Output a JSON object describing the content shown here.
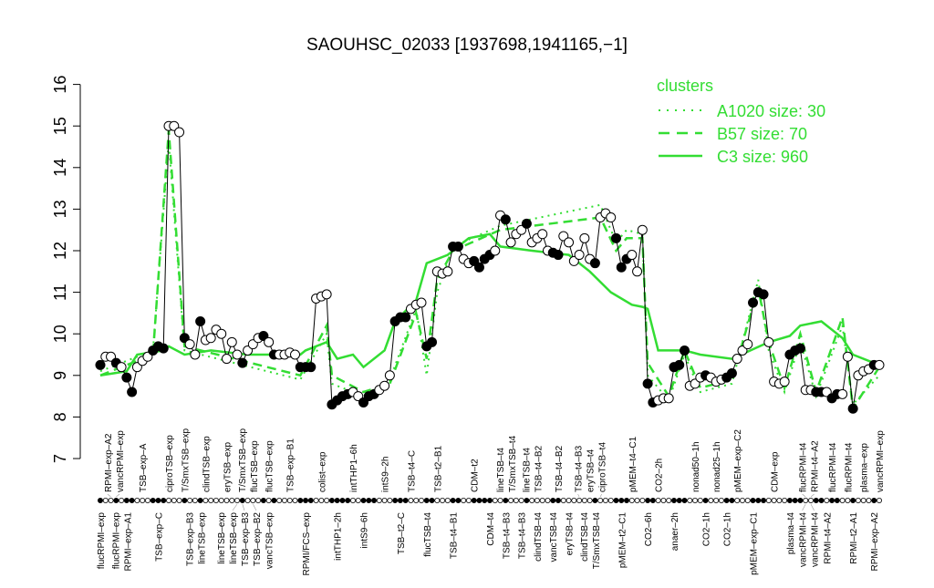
{
  "chart_data": {
    "type": "line",
    "title": "SAOUHSC_02033 [1937698,1941165,−1]",
    "xlabel": "",
    "ylabel": "",
    "ylim": [
      7,
      16
    ],
    "yticks": [
      7,
      8,
      9,
      10,
      11,
      12,
      13,
      14,
      15,
      16
    ],
    "grid": false,
    "legend": {
      "title": "clusters",
      "placement": "top-right",
      "entries": [
        {
          "label": "A1020 size: 30",
          "style": "dotted"
        },
        {
          "label": "B57 size: 70",
          "style": "dashed"
        },
        {
          "label": "C3 size: 960",
          "style": "solid"
        }
      ]
    },
    "colors": {
      "cluster": "#33dd33",
      "data": "#000000"
    },
    "points": [
      [
        9.25,
        1
      ],
      [
        9.45,
        0
      ],
      [
        9.45,
        0
      ],
      [
        9.3,
        1
      ],
      [
        9.2,
        0
      ],
      [
        8.95,
        1
      ],
      [
        8.6,
        1
      ],
      [
        9.2,
        0
      ],
      [
        9.35,
        0
      ],
      [
        9.45,
        0
      ],
      [
        9.6,
        1
      ],
      [
        9.7,
        1
      ],
      [
        9.65,
        1
      ],
      [
        15.0,
        0
      ],
      [
        15.0,
        0
      ],
      [
        14.85,
        0
      ],
      [
        9.9,
        1
      ],
      [
        9.75,
        0
      ],
      [
        9.5,
        0
      ],
      [
        10.3,
        1
      ],
      [
        9.85,
        0
      ],
      [
        9.9,
        0
      ],
      [
        10.1,
        0
      ],
      [
        10.0,
        0
      ],
      [
        9.4,
        0
      ],
      [
        9.8,
        0
      ],
      [
        9.5,
        0
      ],
      [
        9.3,
        1
      ],
      [
        9.6,
        0
      ],
      [
        9.75,
        0
      ],
      [
        9.9,
        0
      ],
      [
        9.95,
        1
      ],
      [
        9.8,
        0
      ],
      [
        9.5,
        1
      ],
      [
        9.5,
        0
      ],
      [
        9.5,
        0
      ],
      [
        9.55,
        0
      ],
      [
        9.5,
        0
      ],
      [
        9.2,
        1
      ],
      [
        9.2,
        1
      ],
      [
        9.2,
        1
      ],
      [
        10.85,
        0
      ],
      [
        10.9,
        0
      ],
      [
        10.95,
        0
      ],
      [
        8.3,
        1
      ],
      [
        8.4,
        1
      ],
      [
        8.5,
        1
      ],
      [
        8.55,
        1
      ],
      [
        8.6,
        0
      ],
      [
        8.5,
        0
      ],
      [
        8.35,
        1
      ],
      [
        8.5,
        1
      ],
      [
        8.55,
        1
      ],
      [
        8.65,
        0
      ],
      [
        8.75,
        0
      ],
      [
        9.0,
        0
      ],
      [
        10.3,
        1
      ],
      [
        10.4,
        1
      ],
      [
        10.4,
        1
      ],
      [
        10.6,
        0
      ],
      [
        10.7,
        0
      ],
      [
        10.75,
        0
      ],
      [
        9.7,
        1
      ],
      [
        9.8,
        1
      ],
      [
        11.5,
        0
      ],
      [
        11.45,
        0
      ],
      [
        11.5,
        0
      ],
      [
        12.1,
        1
      ],
      [
        12.1,
        1
      ],
      [
        11.8,
        0
      ],
      [
        11.7,
        0
      ],
      [
        11.75,
        1
      ],
      [
        11.6,
        1
      ],
      [
        11.8,
        1
      ],
      [
        11.9,
        1
      ],
      [
        12.0,
        0
      ],
      [
        12.85,
        0
      ],
      [
        12.75,
        1
      ],
      [
        12.2,
        0
      ],
      [
        12.4,
        0
      ],
      [
        12.5,
        0
      ],
      [
        12.65,
        1
      ],
      [
        12.2,
        0
      ],
      [
        12.3,
        0
      ],
      [
        12.4,
        0
      ],
      [
        12.0,
        0
      ],
      [
        11.95,
        1
      ],
      [
        11.9,
        1
      ],
      [
        12.35,
        0
      ],
      [
        12.2,
        0
      ],
      [
        11.75,
        0
      ],
      [
        11.9,
        0
      ],
      [
        12.3,
        0
      ],
      [
        11.8,
        0
      ],
      [
        11.7,
        1
      ],
      [
        12.8,
        0
      ],
      [
        12.9,
        0
      ],
      [
        12.8,
        0
      ],
      [
        12.3,
        1
      ],
      [
        11.6,
        1
      ],
      [
        11.8,
        1
      ],
      [
        11.9,
        0
      ],
      [
        11.5,
        0
      ],
      [
        12.5,
        0
      ],
      [
        8.8,
        1
      ],
      [
        8.35,
        1
      ],
      [
        8.4,
        0
      ],
      [
        8.45,
        0
      ],
      [
        8.45,
        0
      ],
      [
        9.2,
        1
      ],
      [
        9.25,
        1
      ],
      [
        9.6,
        1
      ],
      [
        8.75,
        0
      ],
      [
        8.8,
        0
      ],
      [
        8.95,
        0
      ],
      [
        9.0,
        1
      ],
      [
        8.95,
        0
      ],
      [
        8.85,
        0
      ],
      [
        8.9,
        0
      ],
      [
        8.95,
        1
      ],
      [
        9.05,
        1
      ],
      [
        9.4,
        0
      ],
      [
        9.6,
        0
      ],
      [
        9.75,
        0
      ],
      [
        10.75,
        1
      ],
      [
        11.0,
        1
      ],
      [
        10.95,
        1
      ],
      [
        9.8,
        0
      ],
      [
        8.85,
        0
      ],
      [
        8.8,
        0
      ],
      [
        8.85,
        0
      ],
      [
        9.5,
        1
      ],
      [
        9.6,
        1
      ],
      [
        9.65,
        1
      ],
      [
        8.65,
        0
      ],
      [
        8.65,
        0
      ],
      [
        8.6,
        1
      ],
      [
        8.6,
        1
      ],
      [
        8.6,
        0
      ],
      [
        8.45,
        1
      ],
      [
        8.55,
        1
      ],
      [
        8.55,
        0
      ],
      [
        9.45,
        0
      ],
      [
        8.2,
        1
      ],
      [
        9.0,
        0
      ],
      [
        9.1,
        0
      ],
      [
        9.15,
        0
      ],
      [
        9.25,
        1
      ],
      [
        9.25,
        0
      ]
    ],
    "clusters": {
      "C3": [
        [
          0,
          9.0
        ],
        [
          5,
          9.1
        ],
        [
          7,
          9.5
        ],
        [
          12,
          9.6
        ],
        [
          13,
          9.7
        ],
        [
          16,
          9.5
        ],
        [
          21,
          9.6
        ],
        [
          28,
          9.5
        ],
        [
          38,
          9.5
        ],
        [
          39,
          9.6
        ],
        [
          43,
          9.8
        ],
        [
          45,
          9.4
        ],
        [
          48,
          9.5
        ],
        [
          50,
          9.2
        ],
        [
          54,
          9.6
        ],
        [
          56,
          10.3
        ],
        [
          60,
          10.8
        ],
        [
          62,
          11.7
        ],
        [
          66,
          11.9
        ],
        [
          70,
          12.3
        ],
        [
          74,
          12.4
        ],
        [
          76,
          12.1
        ],
        [
          82,
          12.0
        ],
        [
          89,
          11.9
        ],
        [
          93,
          11.5
        ],
        [
          97,
          11.0
        ],
        [
          101,
          10.7
        ],
        [
          103,
          10.65
        ],
        [
          104,
          10.6
        ],
        [
          106,
          9.6
        ],
        [
          111,
          9.6
        ],
        [
          114,
          9.5
        ],
        [
          120,
          9.4
        ],
        [
          127,
          9.8
        ],
        [
          131,
          9.95
        ],
        [
          133,
          10.2
        ],
        [
          137,
          10.3
        ],
        [
          141,
          9.9
        ],
        [
          143,
          9.5
        ],
        [
          148,
          9.25
        ]
      ],
      "B57": [
        [
          0,
          9.0
        ],
        [
          10,
          9.5
        ],
        [
          13,
          14.9
        ],
        [
          16,
          9.7
        ],
        [
          38,
          9.0
        ],
        [
          43,
          10.2
        ],
        [
          44,
          9.0
        ],
        [
          50,
          8.6
        ],
        [
          55,
          8.8
        ],
        [
          60,
          10.5
        ],
        [
          62,
          9.4
        ],
        [
          64,
          11.3
        ],
        [
          67,
          12.0
        ],
        [
          76,
          12.5
        ],
        [
          95,
          12.8
        ],
        [
          98,
          12.0
        ],
        [
          100,
          12.3
        ],
        [
          103,
          12.3
        ],
        [
          104,
          9.3
        ],
        [
          108,
          8.5
        ],
        [
          111,
          9.6
        ],
        [
          114,
          8.7
        ],
        [
          120,
          8.9
        ],
        [
          125,
          11.1
        ],
        [
          127,
          9.8
        ],
        [
          130,
          8.7
        ],
        [
          133,
          10.0
        ],
        [
          136,
          8.6
        ],
        [
          141,
          10.4
        ],
        [
          143,
          8.2
        ],
        [
          148,
          9.2
        ]
      ],
      "A1020": [
        [
          0,
          9.1
        ],
        [
          10,
          9.6
        ],
        [
          13,
          14.6
        ],
        [
          16,
          9.6
        ],
        [
          38,
          8.9
        ],
        [
          43,
          10.0
        ],
        [
          44,
          8.8
        ],
        [
          50,
          8.5
        ],
        [
          55,
          8.9
        ],
        [
          60,
          10.6
        ],
        [
          62,
          9.0
        ],
        [
          64,
          11.0
        ],
        [
          67,
          12.1
        ],
        [
          76,
          12.6
        ],
        [
          95,
          13.1
        ],
        [
          98,
          12.2
        ],
        [
          100,
          12.5
        ],
        [
          103,
          12.4
        ],
        [
          104,
          9.0
        ],
        [
          108,
          8.4
        ],
        [
          111,
          9.5
        ],
        [
          114,
          8.6
        ],
        [
          120,
          8.8
        ],
        [
          125,
          11.3
        ],
        [
          127,
          9.6
        ],
        [
          130,
          8.6
        ],
        [
          133,
          9.8
        ],
        [
          136,
          8.5
        ],
        [
          141,
          10.2
        ],
        [
          143,
          8.3
        ],
        [
          148,
          9.0
        ]
      ]
    },
    "labels_upper": [
      [
        2,
        "RPMI–exp–A2"
      ],
      [
        3,
        "vancRPMI–exp"
      ],
      [
        8,
        "TSB–exp–A"
      ],
      [
        13,
        "ciproTSB–exp"
      ],
      [
        16,
        "T/SmxTSB–exp"
      ],
      [
        20,
        "clindTSB–exp"
      ],
      [
        24,
        "eryTSB–exp"
      ],
      [
        27,
        "T/SmxTSB–exp"
      ],
      [
        29,
        "flucTSB–exp"
      ],
      [
        32,
        "flucTSB–exp"
      ],
      [
        36,
        "TSB–exp–B1"
      ],
      [
        42,
        "colist–exp"
      ],
      [
        48,
        "intTHP1–6h"
      ],
      [
        54,
        "intS9–2h"
      ],
      [
        59,
        "TSB–t4–C"
      ],
      [
        64,
        "TSB–t2–B1"
      ],
      [
        71,
        "CDM–t2"
      ],
      [
        76,
        "lineTSB–t4"
      ],
      [
        78,
        "T/SmxTSB–t4"
      ],
      [
        81,
        "lineTSB–t4"
      ],
      [
        83,
        "TSB–t4–B2"
      ],
      [
        87,
        "TSB–t4–B2"
      ],
      [
        91,
        "TSB–t4–B3"
      ],
      [
        93,
        "eryTSB–t4"
      ],
      [
        95,
        "ciproTSB–t4"
      ],
      [
        101,
        "pMEM–t4–C1"
      ],
      [
        106,
        "CO2–2h"
      ],
      [
        113,
        "nonad50–1h"
      ],
      [
        117,
        "nonad25–1h"
      ],
      [
        121,
        "pMEM–exp–C2"
      ],
      [
        128,
        "CDM–exp"
      ],
      [
        134,
        "flucRPMI–t4"
      ],
      [
        135,
        "RPMI–t4–A2"
      ],
      [
        139,
        "flucRPMI–t4"
      ],
      [
        142,
        "flucRPMI–t4"
      ],
      [
        145,
        "plasma–exp"
      ],
      [
        148,
        "vancRPMI–exp"
      ]
    ],
    "labels_lower": [
      [
        0,
        "flucRPMI–exp"
      ],
      [
        3,
        "flucRPMI–exp"
      ],
      [
        5,
        "RPMI–exp–A1"
      ],
      [
        11,
        "TSB–exp–C"
      ],
      [
        17,
        "TSB–exp–B3"
      ],
      [
        19,
        "lineTSB–exp"
      ],
      [
        23,
        "lineTSB–exp"
      ],
      [
        26,
        "lineTSB–exp"
      ],
      [
        27,
        "TSB–exp–B3"
      ],
      [
        29,
        "TSB–exp–B2"
      ],
      [
        32,
        "vancTSB–exp"
      ],
      [
        39,
        "RPMI/FCS–exp"
      ],
      [
        45,
        "intTHP1–2h"
      ],
      [
        50,
        "intS9–6h"
      ],
      [
        57,
        "TSB–t2–C"
      ],
      [
        62,
        "flucTSB–t4"
      ],
      [
        67,
        "TSB–t4–B1"
      ],
      [
        74,
        "CDM–t4"
      ],
      [
        77,
        "TSB–t4–B3"
      ],
      [
        80,
        "TSB–t4–B3"
      ],
      [
        83,
        "clindTSB–t4"
      ],
      [
        86,
        "vancTSB–t4"
      ],
      [
        89,
        "eryTSB–t4"
      ],
      [
        92,
        "clindTSB–t4"
      ],
      [
        94,
        "T/SmxTSB–t4"
      ],
      [
        99,
        "pMEM–t2–C1"
      ],
      [
        104,
        "CO2–6h"
      ],
      [
        109,
        "anaer–2h"
      ],
      [
        115,
        "CO2–1h"
      ],
      [
        119,
        "CO2–1h"
      ],
      [
        124,
        "pMEM–exp–C1"
      ],
      [
        131,
        "plasma–t4"
      ],
      [
        134,
        "vancRPMI–t4"
      ],
      [
        135,
        "vancRPMI–t4"
      ],
      [
        138,
        "RPMI–t4–A2"
      ],
      [
        143,
        "RPMI–t2–A1"
      ],
      [
        147,
        "RPMI–exp–A2"
      ]
    ]
  }
}
